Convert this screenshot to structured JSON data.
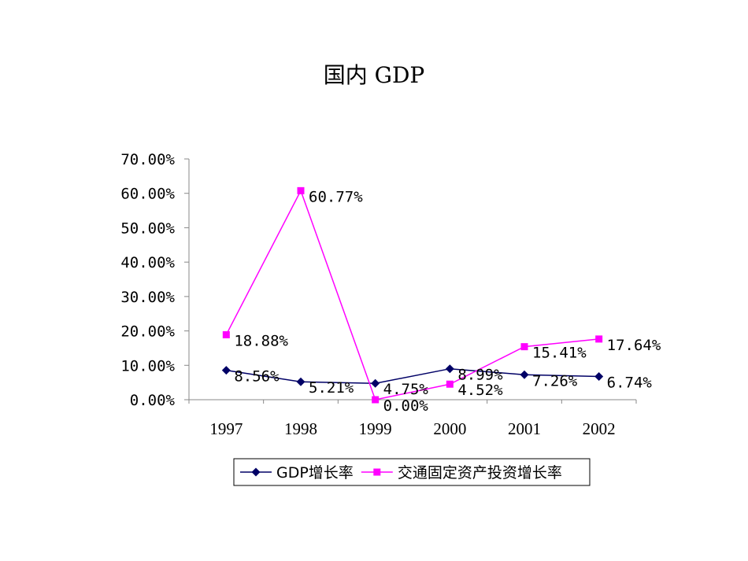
{
  "chart_data": {
    "type": "line",
    "title": "国内 GDP",
    "categories": [
      "1997",
      "1998",
      "1999",
      "2000",
      "2001",
      "2002"
    ],
    "ylim": [
      0,
      70
    ],
    "yticks": [
      "0.00%",
      "10.00%",
      "20.00%",
      "30.00%",
      "40.00%",
      "50.00%",
      "60.00%",
      "70.00%"
    ],
    "ytick_values": [
      0,
      10,
      20,
      30,
      40,
      50,
      60,
      70
    ],
    "grid": false,
    "legend_position": "bottom",
    "series": [
      {
        "name": "GDP增长率",
        "values": [
          8.56,
          5.21,
          4.75,
          8.99,
          7.26,
          6.74
        ],
        "labels": [
          "8.56%",
          "5.21%",
          "4.75%",
          "8.99%",
          "7.26%",
          "6.74%"
        ],
        "color": "#000066",
        "marker": "diamond"
      },
      {
        "name": "交通固定资产投资增长率",
        "values": [
          18.88,
          60.77,
          0.0,
          4.52,
          15.41,
          17.64
        ],
        "labels": [
          "18.88%",
          "60.77%",
          "0.00%",
          "4.52%",
          "15.41%",
          "17.64%"
        ],
        "color": "#ff00ff",
        "marker": "square"
      }
    ]
  }
}
